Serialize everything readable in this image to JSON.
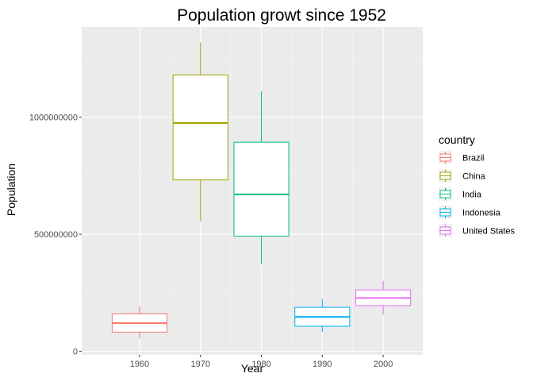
{
  "chart_data": {
    "type": "boxplot",
    "title": "Population growt since 1952",
    "xlabel": "Year",
    "ylabel": "Population",
    "x_ticks": [
      "1960",
      "1970",
      "1980",
      "1990",
      "2000"
    ],
    "y_ticks": [
      0,
      500000000,
      1000000000
    ],
    "y_tick_labels": [
      "0",
      "500000000",
      "1000000000"
    ],
    "ylim": [
      -15000000,
      1385000000
    ],
    "xlim": [
      1950,
      2006
    ],
    "grid": true,
    "legend": {
      "title": "country",
      "position": "right"
    },
    "series": [
      {
        "name": "Brazil",
        "color": "#F8766D",
        "x_center": 1959.5,
        "x_range": [
          1955,
          1964
        ],
        "stats": {
          "min": 56000000,
          "q1": 82000000,
          "median": 120000000,
          "q3": 160000000,
          "max": 193000000
        }
      },
      {
        "name": "China",
        "color": "#A3A500",
        "x_center": 1969.5,
        "x_range": [
          1965,
          1974
        ],
        "stats": {
          "min": 556000000,
          "q1": 732000000,
          "median": 975000000,
          "q3": 1180000000,
          "max": 1320000000
        }
      },
      {
        "name": "India",
        "color": "#00BF7D",
        "x_center": 1979.5,
        "x_range": [
          1975,
          1984
        ],
        "stats": {
          "min": 372000000,
          "q1": 492000000,
          "median": 670000000,
          "q3": 893000000,
          "max": 1110000000
        }
      },
      {
        "name": "Indonesia",
        "color": "#00B0F6",
        "x_center": 1989.5,
        "x_range": [
          1985,
          1994
        ],
        "stats": {
          "min": 82000000,
          "q1": 107000000,
          "median": 147000000,
          "q3": 188000000,
          "max": 224000000
        }
      },
      {
        "name": "United States",
        "color": "#E76BF3",
        "x_center": 1999.5,
        "x_range": [
          1995,
          2004
        ],
        "stats": {
          "min": 157000000,
          "q1": 195000000,
          "median": 228000000,
          "q3": 262000000,
          "max": 301000000
        }
      }
    ]
  }
}
